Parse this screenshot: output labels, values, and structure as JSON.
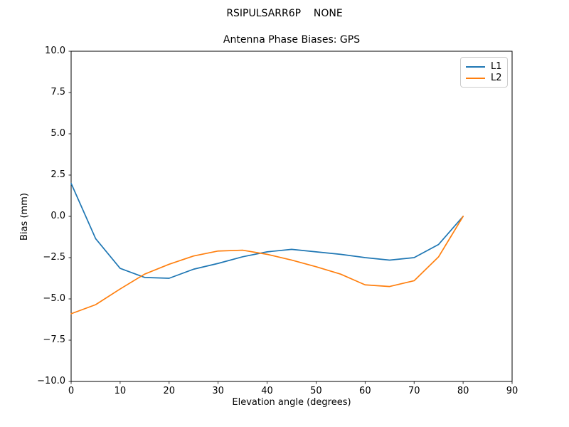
{
  "figure": {
    "suptitle": "RSIPULSARR6P    NONE",
    "background": "#ffffff",
    "frame_color": "#000000",
    "text_color": "#000000",
    "legend_border_color": "#cccccc"
  },
  "chart_data": {
    "type": "line",
    "title": "Antenna Phase Biases: GPS",
    "xlabel": "Elevation angle (degrees)",
    "ylabel": "Bias (mm)",
    "xlim": [
      0,
      90
    ],
    "ylim": [
      -10,
      10
    ],
    "xticks": [
      "0",
      "10",
      "20",
      "30",
      "40",
      "50",
      "60",
      "70",
      "80",
      "90"
    ],
    "yticks": [
      "10.0",
      "7.5",
      "5.0",
      "2.5",
      "0.0",
      "−2.5",
      "−5.0",
      "−7.5",
      "−10.0"
    ],
    "grid": false,
    "legend_position": "upper right",
    "x": [
      0,
      5,
      10,
      15,
      20,
      25,
      30,
      35,
      40,
      45,
      50,
      55,
      60,
      65,
      70,
      75,
      80
    ],
    "series": [
      {
        "name": "L1",
        "color": "#1f77b4",
        "values": [
          2.0,
          -1.35,
          -3.15,
          -3.7,
          -3.75,
          -3.2,
          -2.85,
          -2.45,
          -2.15,
          -2.0,
          -2.15,
          -2.3,
          -2.5,
          -2.65,
          -2.5,
          -1.7,
          0.0
        ]
      },
      {
        "name": "L2",
        "color": "#ff7f0e",
        "values": [
          -5.9,
          -5.35,
          -4.4,
          -3.5,
          -2.9,
          -2.4,
          -2.1,
          -2.05,
          -2.3,
          -2.65,
          -3.05,
          -3.5,
          -4.15,
          -4.25,
          -3.9,
          -2.45,
          0.0
        ]
      }
    ]
  }
}
